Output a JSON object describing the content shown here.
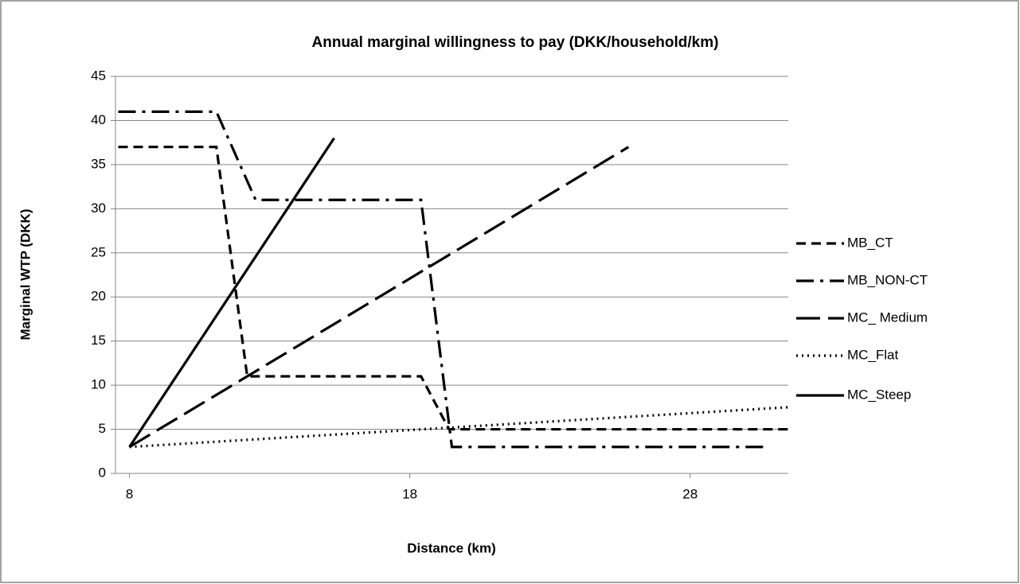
{
  "chart_data": {
    "type": "line",
    "title": "Annual marginal willingness to pay (DKK/household/km)",
    "x_label": "Distance (km)",
    "y_label": "Marginal WTP (DKK)",
    "xlim": [
      7.5,
      31.5
    ],
    "xticks": [
      8,
      18,
      28
    ],
    "ylim": [
      0,
      45
    ],
    "yticks": [
      0,
      5,
      10,
      15,
      20,
      25,
      30,
      35,
      40,
      45
    ],
    "grid": true,
    "legend": "right",
    "series": [
      {
        "name": "MB_CT",
        "color": "#000000",
        "dash": "12,7",
        "x": [
          7.6,
          11.1,
          12.2,
          18.4,
          19.4,
          31.5
        ],
        "values": [
          37,
          37,
          11,
          11,
          5,
          5
        ]
      },
      {
        "name": "MB_NON-CT",
        "color": "#000000",
        "dash": "22,8,4,8",
        "x": [
          7.6,
          11.1,
          12.5,
          18.4,
          19.5,
          30.7
        ],
        "values": [
          41,
          41,
          31,
          31,
          3,
          3
        ]
      },
      {
        "name": "MC_ Medium",
        "color": "#000000",
        "dash": "30,10",
        "x": [
          8,
          12.2,
          25.8
        ],
        "values": [
          3,
          11,
          37
        ]
      },
      {
        "name": "MC_Flat",
        "color": "#000000",
        "dash": "2,5",
        "x": [
          8,
          31.5
        ],
        "values": [
          3,
          7.5
        ]
      },
      {
        "name": "MC_Steep",
        "color": "#000000",
        "dash": "none",
        "x": [
          8,
          15.3
        ],
        "values": [
          3,
          38
        ]
      }
    ]
  }
}
